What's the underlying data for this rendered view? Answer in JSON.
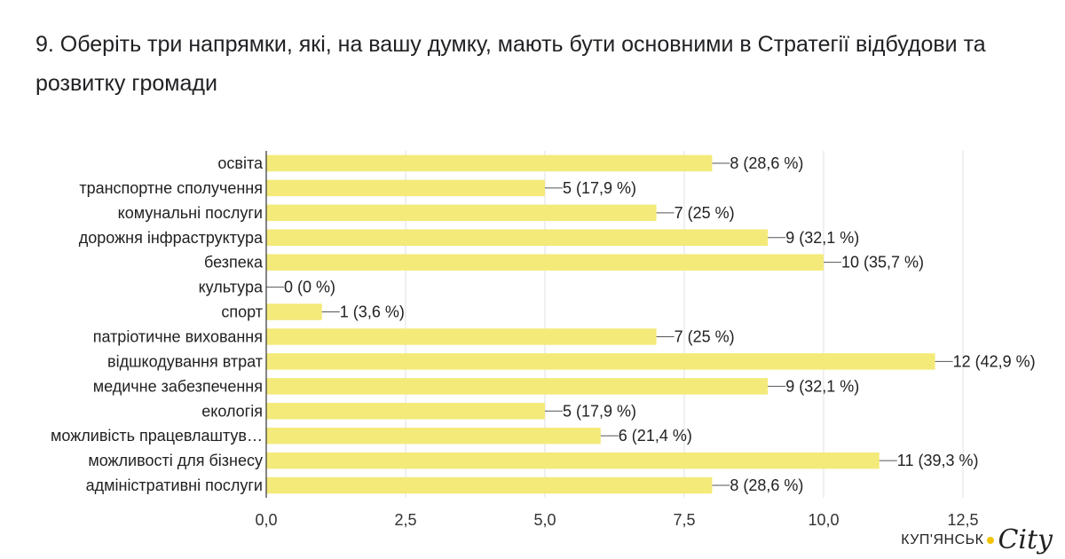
{
  "title": "9. Оберіть три напрямки, які, на вашу думку, мають бути основними в Стратегії відбудови та розвитку громади",
  "watermark": {
    "text": "КУП'ЯНСЬК",
    "city": "City"
  },
  "colors": {
    "bar": "#f3ea7a",
    "grid": "#e0e0e0",
    "axis": "#333333"
  },
  "chart_data": {
    "type": "bar",
    "orientation": "horizontal",
    "categories": [
      "освіта",
      "транспортне сполучення",
      "комунальні послуги",
      "дорожня інфраструктура",
      "безпека",
      "культура",
      "спорт",
      "патріотичне виховання",
      "відшкодування втрат",
      "медичне забезпечення",
      "екологія",
      "можливість працевлаштув…",
      "можливості для бізнесу",
      "адміністративні послуги"
    ],
    "values": [
      8,
      5,
      7,
      9,
      10,
      0,
      1,
      7,
      12,
      9,
      5,
      6,
      11,
      8
    ],
    "data_labels": [
      "8 (28,6 %)",
      "5 (17,9 %)",
      "7 (25 %)",
      "9 (32,1 %)",
      "10 (35,7 %)",
      "0 (0 %)",
      "1 (3,6 %)",
      "7 (25 %)",
      "12 (42,9 %)",
      "9 (32,1 %)",
      "5 (17,9 %)",
      "6 (21,4 %)",
      "11 (39,3 %)",
      "8 (28,6 %)"
    ],
    "xlim": [
      0,
      12.5
    ],
    "xticks": [
      0,
      2.5,
      5,
      7.5,
      10,
      12.5
    ],
    "xtick_labels": [
      "0,0",
      "2,5",
      "5,0",
      "7,5",
      "10,0",
      "12,5"
    ],
    "grid": true
  }
}
